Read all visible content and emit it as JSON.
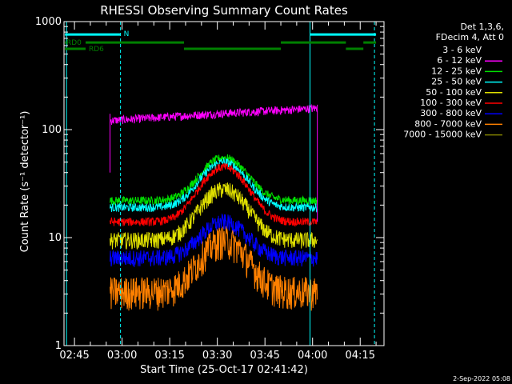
{
  "chart_data": {
    "type": "line",
    "title": "RHESSI Observing Summary Count Rates",
    "xlabel": "Start Time (25-Oct-17 02:41:42)",
    "ylabel": "Count Rate (s⁻¹ detector⁻¹)",
    "y_scale": "log",
    "ylim": [
      1,
      1000
    ],
    "xlim_minutes": [
      41.7,
      142.5
    ],
    "x_ticks": [
      {
        "min": 45,
        "label": "02:45"
      },
      {
        "min": 60,
        "label": "03:00"
      },
      {
        "min": 75,
        "label": "03:15"
      },
      {
        "min": 90,
        "label": "03:30"
      },
      {
        "min": 105,
        "label": "03:45"
      },
      {
        "min": 120,
        "label": "04:00"
      },
      {
        "min": 135,
        "label": "04:15"
      }
    ],
    "y_ticks": [
      {
        "value": 1,
        "label": "1"
      },
      {
        "value": 10,
        "label": "10"
      },
      {
        "value": 100,
        "label": "100"
      },
      {
        "value": 1000,
        "label": "1000"
      }
    ],
    "legend_header": [
      "Det 1,3,6,",
      "FDecim 4, Att 0"
    ],
    "legend_placement": "right",
    "series": [
      {
        "name": "3 - 6 keV",
        "color": "#000000"
      },
      {
        "name": "6 - 12 keV",
        "color": "#ff00ff"
      },
      {
        "name": "12 - 25 keV",
        "color": "#00e000"
      },
      {
        "name": "25 - 50 keV",
        "color": "#00ffff"
      },
      {
        "name": "50 - 100 keV",
        "color": "#e0e000"
      },
      {
        "name": "100 - 300 keV",
        "color": "#ff0000"
      },
      {
        "name": "300 - 800 keV",
        "color": "#0000ff"
      },
      {
        "name": "800 - 7000 keV",
        "color": "#ff8000"
      },
      {
        "name": "7000 - 15000 keV",
        "color": "#808000"
      }
    ],
    "plotted_series": [
      {
        "name": "3 - 6 keV",
        "color": "#000000",
        "base": 130,
        "peak": 0,
        "start": 56.2,
        "end": 121.5
      },
      {
        "name": "6 - 12 keV",
        "color": "#ff00ff",
        "base": 140,
        "peak": 0,
        "start": 56.2,
        "end": 121.5
      },
      {
        "name": "12 - 25 keV",
        "color": "#00e000",
        "base": 22,
        "peak": 55,
        "start": 56.2,
        "end": 121.5
      },
      {
        "name": "25 - 50 keV",
        "color": "#00ffff",
        "base": 19,
        "peak": 50,
        "start": 56.2,
        "end": 121.5
      },
      {
        "name": "50 - 100 keV",
        "color": "#e0e000",
        "base": 9.5,
        "peak": 28,
        "start": 56.2,
        "end": 121.5
      },
      {
        "name": "100 - 300 keV",
        "color": "#ff0000",
        "base": 14,
        "peak": 45,
        "start": 56.2,
        "end": 121.5
      },
      {
        "name": "300 - 800 keV",
        "color": "#0000ff",
        "base": 6.5,
        "peak": 14,
        "start": 56.2,
        "end": 121.5
      },
      {
        "name": "800 - 7000 keV",
        "color": "#ff8000",
        "base": 3.2,
        "peak": 9.5,
        "start": 56.2,
        "end": 121.5
      }
    ],
    "vertical_lines": [
      {
        "min": 42.5,
        "style": "solid",
        "color": "#00ffff"
      },
      {
        "min": 59.5,
        "style": "dashed",
        "color": "#00ffff"
      },
      {
        "min": 119.2,
        "style": "solid",
        "color": "#00ffff"
      },
      {
        "min": 139.5,
        "style": "dashed",
        "color": "#00ffff"
      }
    ],
    "bars": [
      {
        "label": "N",
        "color": "#00ffff",
        "y": 760,
        "segments": [
          [
            42,
            59.5
          ],
          [
            119.2,
            140
          ]
        ]
      },
      {
        "label": "RD0",
        "color": "#008000",
        "y": 640,
        "segments": [
          [
            42,
            42.5
          ],
          [
            48.5,
            79.5
          ],
          [
            110,
            130.5
          ],
          [
            136,
            140
          ]
        ]
      },
      {
        "label": "RD6",
        "color": "#008000",
        "y": 560,
        "segments": [
          [
            42,
            48.5
          ],
          [
            130.5,
            136
          ]
        ]
      },
      {
        "label": "",
        "color": "#008000",
        "y": 560,
        "segments": [
          [
            79.5,
            110
          ]
        ]
      }
    ],
    "grid": false
  },
  "footer_date": "2-Sep-2022 05:08"
}
